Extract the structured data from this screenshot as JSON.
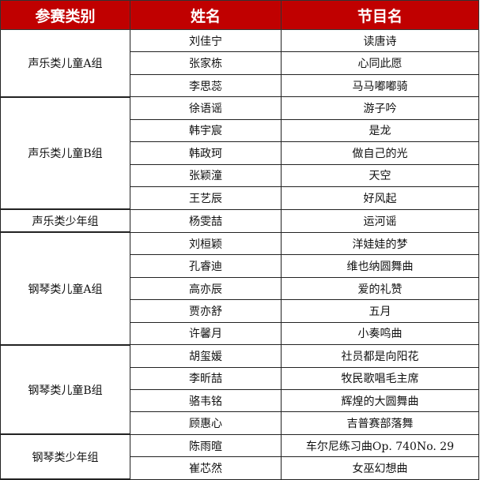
{
  "header": {
    "category": "参赛类别",
    "name": "姓名",
    "program": "节目名"
  },
  "colors": {
    "header_bg": "#C00000",
    "header_text": "#FFFFFF"
  },
  "groups": [
    {
      "category": "声乐类儿童A组",
      "entries": [
        {
          "name": "刘佳宁",
          "program": "读唐诗"
        },
        {
          "name": "张家栋",
          "program": "心同此愿"
        },
        {
          "name": "李思蕊",
          "program": "马马嘟嘟骑"
        }
      ]
    },
    {
      "category": "声乐类儿童B组",
      "entries": [
        {
          "name": "徐语谣",
          "program": "游子吟"
        },
        {
          "name": "韩宇宸",
          "program": "是龙"
        },
        {
          "name": "韩政珂",
          "program": "做自己的光"
        },
        {
          "name": "张颖潼",
          "program": "天空"
        },
        {
          "name": "王艺辰",
          "program": "好风起"
        }
      ]
    },
    {
      "category": "声乐类少年组",
      "entries": [
        {
          "name": "杨雯喆",
          "program": "运河谣"
        }
      ]
    },
    {
      "category": "钢琴类儿童A组",
      "entries": [
        {
          "name": "刘桓颖",
          "program": "洋娃娃的梦"
        },
        {
          "name": "孔睿迪",
          "program": "维也纳圆舞曲"
        },
        {
          "name": "高亦辰",
          "program": "爱的礼赞"
        },
        {
          "name": "贾亦舒",
          "program": "五月"
        },
        {
          "name": "许馨月",
          "program": "小奏鸣曲"
        }
      ]
    },
    {
      "category": "钢琴类儿童B组",
      "entries": [
        {
          "name": "胡玺媛",
          "program": "社员都是向阳花"
        },
        {
          "name": "李昕喆",
          "program": "牧民歌唱毛主席"
        },
        {
          "name": "骆韦铭",
          "program": "辉煌的大圆舞曲"
        },
        {
          "name": "顾惠心",
          "program": "吉普赛部落舞"
        }
      ]
    },
    {
      "category": "钢琴类少年组",
      "entries": [
        {
          "name": "陈雨暄",
          "program": "车尔尼练习曲Op. 740No. 29"
        },
        {
          "name": "崔芯然",
          "program": "女巫幻想曲"
        }
      ]
    }
  ]
}
